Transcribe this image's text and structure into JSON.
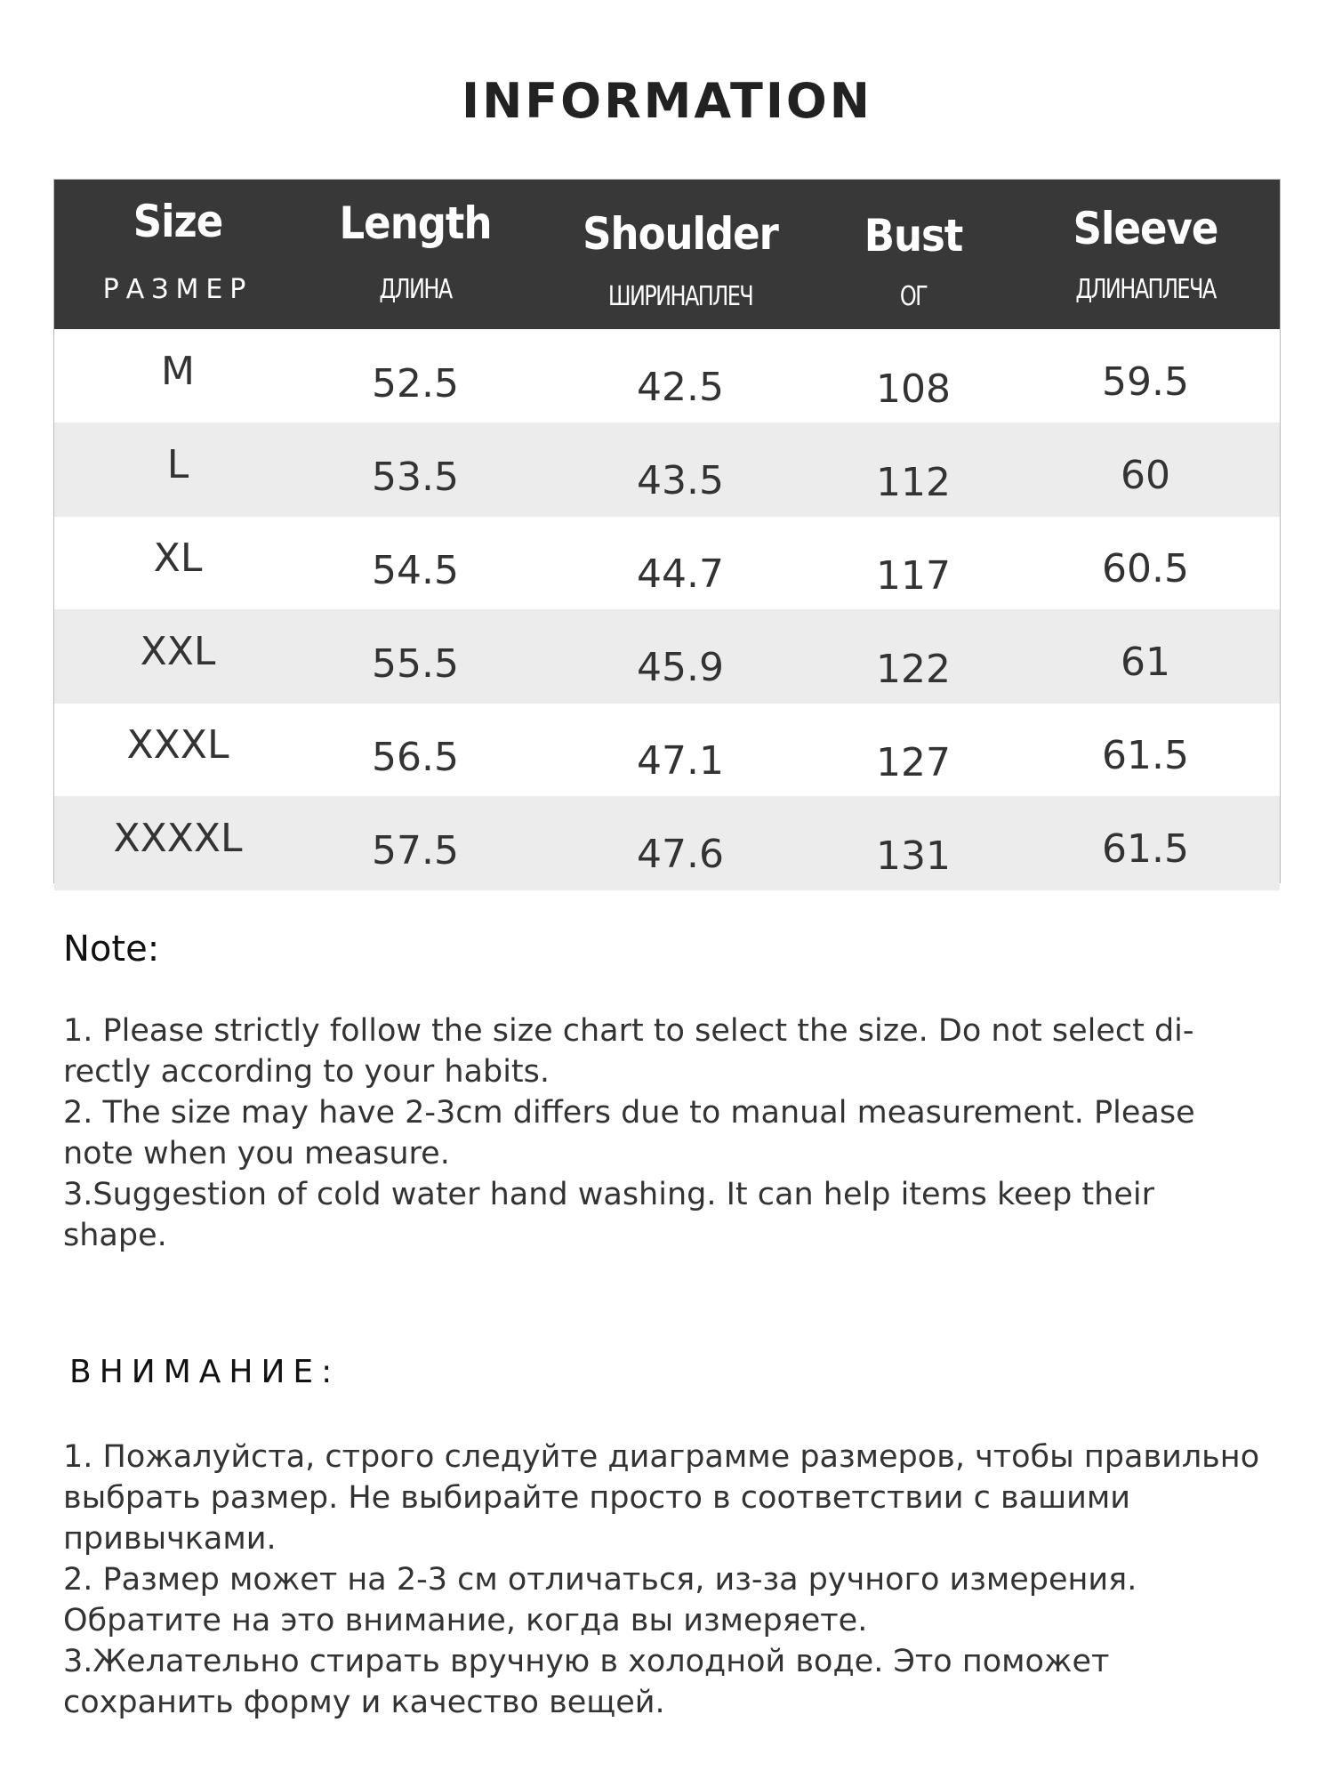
{
  "title": "INFORMATION",
  "table": {
    "headers": [
      {
        "en": "Size",
        "ru": "РАЗМЕР"
      },
      {
        "en": "Length",
        "ru": "ДЛИНА"
      },
      {
        "en": "Shoulder",
        "ru": "ШИРИНАПЛЕЧ"
      },
      {
        "en": "Bust",
        "ru": "ОГ"
      },
      {
        "en": "Sleeve",
        "ru": "ДЛИНАПЛЕЧА"
      }
    ],
    "rows": [
      [
        "M",
        "52.5",
        "42.5",
        "108",
        "59.5"
      ],
      [
        "L",
        "53.5",
        "43.5",
        "112",
        "60"
      ],
      [
        "XL",
        "54.5",
        "44.7",
        "117",
        "60.5"
      ],
      [
        "XXL",
        "55.5",
        "45.9",
        "122",
        "61"
      ],
      [
        "XXXL",
        "56.5",
        "47.1",
        "127",
        "61.5"
      ],
      [
        "XXXXL",
        "57.5",
        "47.6",
        "131",
        "61.5"
      ]
    ]
  },
  "note": {
    "heading": "Note:",
    "lines": [
      "1. Please strictly follow the size chart  to select the size. Do not select di-",
      "rectly according to your habits.",
      "2. The size may have 2-3cm differs due to manual measurement. Please",
      "note when you measure.",
      "3.Suggestion of cold water hand washing. It can help items keep their",
      "shape."
    ]
  },
  "note_ru": {
    "heading": "ВНИМАНИЕ:",
    "lines": [
      "1. Пожалуйста, строго следуйте диаграмме размеров, чтобы правильно",
      "выбрать размер. Не выбирайте просто в соответствии с вашими",
      "привычками.",
      "2. Размер может на 2-3 см отличаться, из-за ручного измерения.",
      "Обратите на это внимание, когда вы измеряете.",
      "3.Желательно стирать вручную в холодной воде. Это поможет",
      "сохранить форму и качество вещей."
    ]
  },
  "colors": {
    "header_bg": "#383838",
    "stripe": "#ececec"
  }
}
